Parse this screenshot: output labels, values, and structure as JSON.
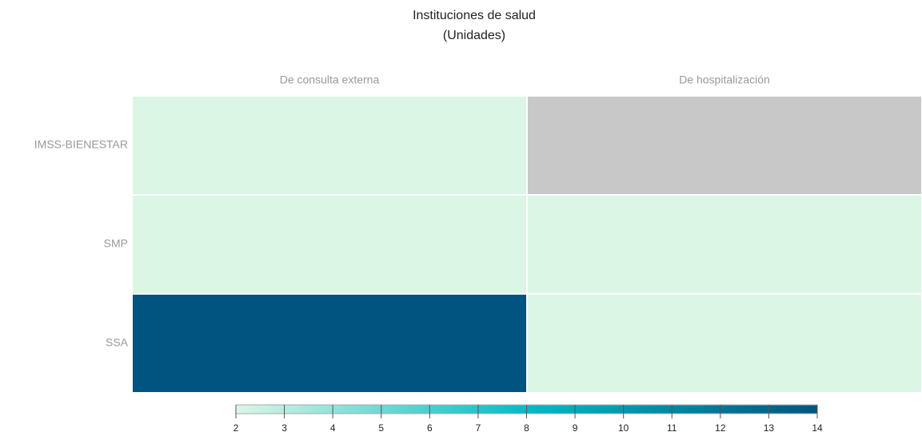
{
  "chart_data": {
    "type": "heatmap",
    "title": "Instituciones de salud",
    "subtitle": "(Unidades)",
    "x": [
      "De consulta externa",
      "De hospitalización"
    ],
    "y": [
      "IMSS-BIENESTAR",
      "SMP",
      "SSA"
    ],
    "z": [
      [
        2,
        null
      ],
      [
        2,
        2
      ],
      [
        14,
        2
      ]
    ],
    "zlim": [
      2,
      14
    ],
    "colorbar_ticks": [
      2,
      3,
      4,
      5,
      6,
      7,
      8,
      9,
      10,
      11,
      12,
      13,
      14
    ],
    "colorscale": [
      "#dcf6e6",
      "#00bcc6",
      "#00547f"
    ],
    "null_color": "#c8c8c8"
  }
}
